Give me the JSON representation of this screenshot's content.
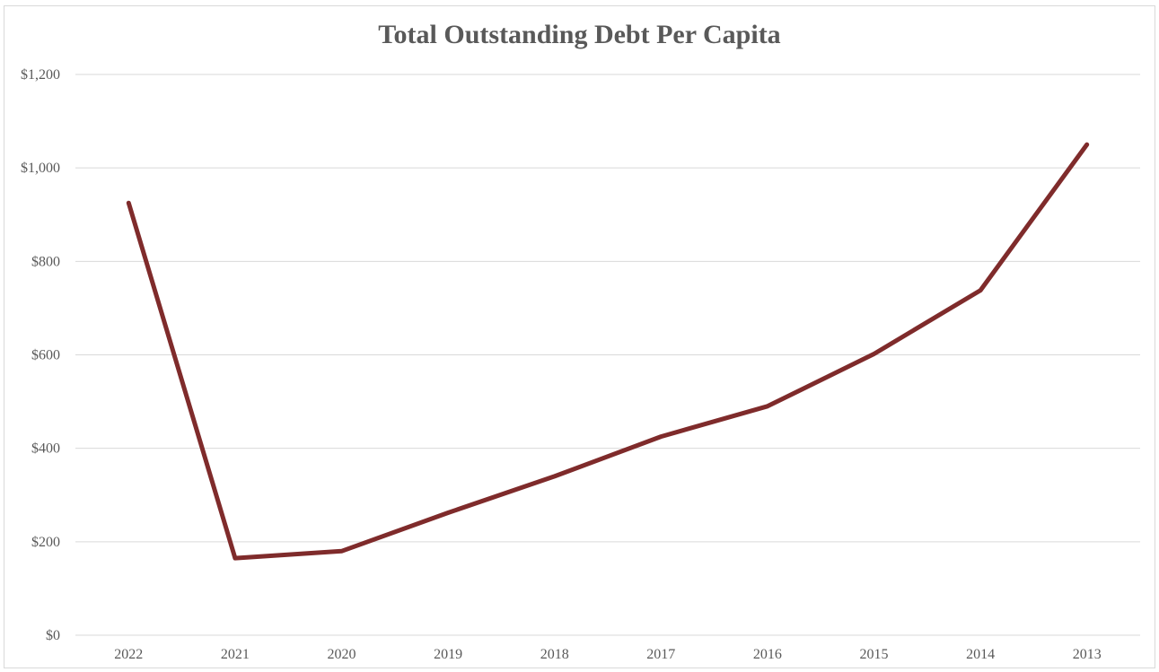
{
  "chart_data": {
    "type": "line",
    "title": "Total Outstanding Debt Per Capita",
    "xlabel": "",
    "ylabel": "",
    "categories": [
      "2022",
      "2021",
      "2020",
      "2019",
      "2018",
      "2017",
      "2016",
      "2015",
      "2014",
      "2013"
    ],
    "series": [
      {
        "values": [
          925,
          165,
          180,
          262,
          340,
          425,
          490,
          602,
          738,
          1050
        ],
        "color": "#7f2b2b"
      }
    ],
    "ylim": [
      0,
      1200
    ],
    "yticks": [
      0,
      200,
      400,
      600,
      800,
      1000,
      1200
    ],
    "ytick_labels": [
      "$0",
      "$200",
      "$400",
      "$600",
      "$800",
      "$1,000",
      "$1,200"
    ],
    "grid": true,
    "legend": "none",
    "gridline_color": "#d9d9d9",
    "text_color": "#595959"
  }
}
